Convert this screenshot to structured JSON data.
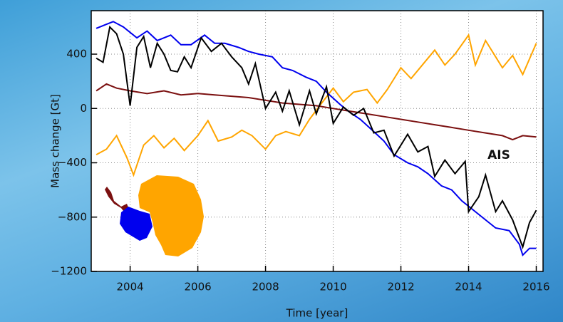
{
  "chart_data": {
    "type": "line",
    "xlabel": "Time [year]",
    "ylabel": "Mass change [Gt]",
    "annotation": "AIS",
    "xlim": [
      2002.85,
      2016.2
    ],
    "ylim": [
      -1200,
      720
    ],
    "xticks": [
      2004,
      2006,
      2008,
      2010,
      2012,
      2014,
      2016
    ],
    "yticks": [
      {
        "value": -1200,
        "label": "−1200"
      },
      {
        "value": -800,
        "label": "−800"
      },
      {
        "value": -400,
        "label": "−400"
      },
      0,
      400
    ],
    "grid": true,
    "series": [
      {
        "color": "#ffa500",
        "x": [
          2003,
          2003.3,
          2003.6,
          2003.9,
          2004.1,
          2004.4,
          2004.7,
          2005,
          2005.3,
          2005.6,
          2006,
          2006.3,
          2006.6,
          2007,
          2007.3,
          2007.6,
          2008,
          2008.3,
          2008.6,
          2009,
          2009.3,
          2009.6,
          2010,
          2010.3,
          2010.6,
          2011,
          2011.3,
          2011.6,
          2012,
          2012.3,
          2012.6,
          2013,
          2013.3,
          2013.6,
          2014,
          2014.2,
          2014.5,
          2014.8,
          2015,
          2015.3,
          2015.6,
          2016
        ],
        "values": [
          -340,
          -300,
          -200,
          -360,
          -490,
          -270,
          -200,
          -290,
          -220,
          -310,
          -200,
          -90,
          -240,
          -210,
          -160,
          -200,
          -300,
          -200,
          -170,
          -200,
          -80,
          20,
          150,
          50,
          120,
          140,
          40,
          140,
          300,
          220,
          310,
          430,
          320,
          400,
          540,
          320,
          500,
          380,
          300,
          390,
          250,
          480
        ]
      },
      {
        "color": "#7b1010",
        "x": [
          2003,
          2003.3,
          2003.6,
          2004,
          2004.5,
          2005,
          2005.5,
          2006,
          2006.5,
          2007,
          2007.5,
          2008,
          2008.5,
          2009,
          2009.5,
          2010,
          2010.5,
          2011,
          2011.5,
          2012,
          2012.5,
          2013,
          2013.5,
          2014,
          2014.5,
          2015,
          2015.3,
          2015.6,
          2016
        ],
        "values": [
          130,
          180,
          150,
          130,
          110,
          130,
          100,
          110,
          100,
          90,
          80,
          60,
          40,
          30,
          20,
          0,
          -20,
          -40,
          -60,
          -80,
          -100,
          -120,
          -140,
          -160,
          -180,
          -200,
          -230,
          -200,
          -210
        ]
      },
      {
        "color": "#0000ee",
        "x": [
          2003,
          2003.3,
          2003.5,
          2003.8,
          2004.2,
          2004.5,
          2004.8,
          2005.2,
          2005.5,
          2005.8,
          2006.2,
          2006.5,
          2006.8,
          2007.2,
          2007.5,
          2007.8,
          2008.2,
          2008.5,
          2008.8,
          2009.2,
          2009.5,
          2009.8,
          2010.2,
          2010.5,
          2010.8,
          2011.2,
          2011.5,
          2011.8,
          2012.2,
          2012.5,
          2012.8,
          2013.2,
          2013.5,
          2013.8,
          2014.2,
          2014.5,
          2014.8,
          2015.2,
          2015.5,
          2015.6,
          2015.8,
          2016
        ],
        "values": [
          590,
          620,
          640,
          600,
          520,
          570,
          500,
          540,
          470,
          470,
          540,
          480,
          480,
          450,
          420,
          400,
          380,
          300,
          280,
          230,
          200,
          120,
          30,
          -30,
          -80,
          -170,
          -240,
          -340,
          -400,
          -430,
          -480,
          -570,
          -600,
          -680,
          -760,
          -820,
          -880,
          -900,
          -1000,
          -1080,
          -1030,
          -1030
        ]
      },
      {
        "color": "#000000",
        "x": [
          2003,
          2003.2,
          2003.4,
          2003.6,
          2003.8,
          2004,
          2004.2,
          2004.4,
          2004.6,
          2004.8,
          2005,
          2005.2,
          2005.4,
          2005.6,
          2005.8,
          2006.1,
          2006.4,
          2006.7,
          2007,
          2007.3,
          2007.5,
          2007.7,
          2008,
          2008.3,
          2008.5,
          2008.7,
          2009,
          2009.3,
          2009.5,
          2009.8,
          2010,
          2010.3,
          2010.6,
          2010.9,
          2011.2,
          2011.5,
          2011.8,
          2012.2,
          2012.5,
          2012.8,
          2013,
          2013.3,
          2013.6,
          2013.9,
          2014,
          2014.3,
          2014.5,
          2014.8,
          2015,
          2015.3,
          2015.6,
          2015.8,
          2016
        ],
        "values": [
          370,
          340,
          600,
          550,
          400,
          20,
          450,
          530,
          300,
          480,
          400,
          280,
          270,
          380,
          300,
          520,
          420,
          480,
          380,
          300,
          180,
          330,
          0,
          120,
          -20,
          130,
          -120,
          130,
          -40,
          160,
          -110,
          10,
          -50,
          0,
          -180,
          -160,
          -350,
          -190,
          -320,
          -280,
          -500,
          -380,
          -480,
          -390,
          -760,
          -650,
          -490,
          -760,
          -680,
          -820,
          -1020,
          -840,
          -750
        ]
      }
    ]
  }
}
